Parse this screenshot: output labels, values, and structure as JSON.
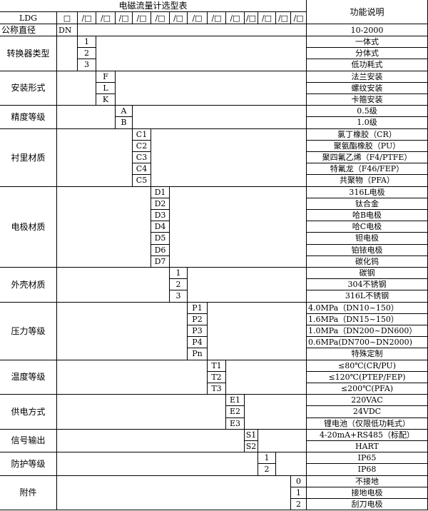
{
  "title": "电磁流量计选型表",
  "function_header": "功能说明",
  "model_prefix": "LDG",
  "box_symbol": "□",
  "slot_symbol": "/□",
  "nominal": {
    "label": "公称直径",
    "code": "DN",
    "desc": "10-2000"
  },
  "groups": [
    {
      "label": "转换器类型",
      "codes": [
        "1",
        "2",
        "3"
      ],
      "descs": [
        "一体式",
        "分体式",
        "低功耗式"
      ]
    },
    {
      "label": "安装形式",
      "codes": [
        "F",
        "L",
        "K"
      ],
      "descs": [
        "法兰安装",
        "螺纹安装",
        "卡箍安装"
      ]
    },
    {
      "label": "精度等级",
      "codes": [
        "A",
        "B"
      ],
      "descs": [
        "0.5级",
        "1.0级"
      ]
    },
    {
      "label": "衬里材质",
      "codes": [
        "C1",
        "C2",
        "C3",
        "C4",
        "C5"
      ],
      "descs": [
        "氯丁橡胶（CR）",
        "聚氨酯橡胶（PU）",
        "聚四氟乙烯（F4/PTFE）",
        "特氟龙（F46/FEP）",
        "共聚物（PFA）"
      ]
    },
    {
      "label": "电极材质",
      "codes": [
        "D1",
        "D2",
        "D3",
        "D4",
        "D5",
        "D6",
        "D7"
      ],
      "descs": [
        "316L电极",
        "钛合金",
        "哈B电极",
        "哈C电极",
        "钽电极",
        "铂铱电极",
        "碳化钨"
      ]
    },
    {
      "label": "外壳材质",
      "codes": [
        "1",
        "2",
        "3"
      ],
      "descs": [
        "碳钢",
        "304不锈钢",
        "316L不锈钢"
      ]
    },
    {
      "label": "压力等级",
      "codes": [
        "P1",
        "P2",
        "P3",
        "P4",
        "Pn"
      ],
      "descs": [
        "4.0MPa（DN10~150）",
        "1.6MPa（DN15~150）",
        "1.0MPa（DN200~DN600）",
        "0.6MPa(DN700~DN2000)",
        "特殊定制"
      ]
    },
    {
      "label": "温度等级",
      "codes": [
        "T1",
        "T2",
        "T3"
      ],
      "descs": [
        "≤80℃(CR/PU)",
        "≤120℃(PTEP/FEP)",
        "≤200℃(PFA)"
      ]
    },
    {
      "label": "供电方式",
      "codes": [
        "E1",
        "E2",
        "E3"
      ],
      "descs": [
        "220VAC",
        "24VDC",
        "锂电池（仅限低功耗式）"
      ]
    },
    {
      "label": "信号输出",
      "codes": [
        "S1",
        "S2"
      ],
      "descs": [
        "4-20mA+RS485（标配）",
        "HART"
      ]
    },
    {
      "label": "防护等级",
      "codes": [
        "1",
        "2"
      ],
      "descs": [
        "IP65",
        "IP68"
      ]
    },
    {
      "label": "附件",
      "codes": [
        "0",
        "1",
        "2"
      ],
      "descs": [
        "不接地",
        "接地电极",
        "刮刀电极"
      ]
    }
  ]
}
